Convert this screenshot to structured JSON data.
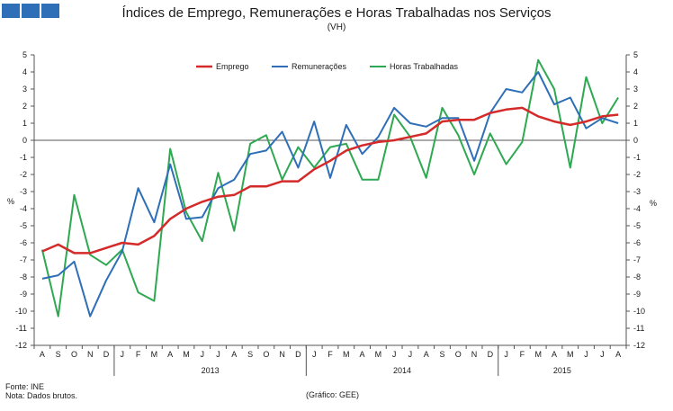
{
  "header": {
    "logo_blocks": 3,
    "logo_color": "#2e6fb7"
  },
  "footer": {
    "source": "Fonte: INE",
    "note": "Nota: Dados brutos.",
    "graph_ref": "(Gráfico: GEE)"
  },
  "chart_data": {
    "type": "line",
    "title": "Índices de Emprego,  Remunerações  e Horas Trabalhadas  nos Serviços",
    "subtitle": "(VH)",
    "ylabel_left": "%",
    "ylabel_right": "%",
    "ylim": [
      -12,
      5
    ],
    "yticks": [
      5,
      4,
      3,
      2,
      1,
      0,
      -1,
      -2,
      -3,
      -4,
      -5,
      -6,
      -7,
      -8,
      -9,
      -10,
      -11,
      -12
    ],
    "categories": [
      "A",
      "S",
      "O",
      "N",
      "D",
      "J",
      "F",
      "M",
      "A",
      "M",
      "J",
      "J",
      "A",
      "S",
      "O",
      "N",
      "D",
      "J",
      "F",
      "M",
      "A",
      "M",
      "J",
      "J",
      "A",
      "S",
      "O",
      "N",
      "D",
      "J",
      "F",
      "M",
      "A",
      "M",
      "J",
      "J",
      "A"
    ],
    "years": [
      {
        "label": "2013",
        "start": 5,
        "end": 16
      },
      {
        "label": "2014",
        "start": 17,
        "end": 28
      },
      {
        "label": "2015",
        "start": 29,
        "end": 36
      }
    ],
    "series": [
      {
        "name": "Emprego",
        "color": "#d42a2a",
        "values": [
          -6.5,
          -6.1,
          -6.6,
          -6.6,
          -6.3,
          -6.0,
          -6.1,
          -5.6,
          -4.6,
          -4.0,
          -3.6,
          -3.3,
          -3.2,
          -2.7,
          -2.7,
          -2.4,
          -2.4,
          -1.7,
          -1.2,
          -0.6,
          -0.3,
          -0.1,
          0.0,
          0.2,
          0.4,
          1.1,
          1.2,
          1.2,
          1.6,
          1.8,
          1.9,
          1.4,
          1.1,
          0.9,
          1.1,
          1.4,
          1.5
        ]
      },
      {
        "name": "Remunerações",
        "color": "#2e6fb7",
        "values": [
          -8.1,
          -7.9,
          -7.1,
          -10.3,
          -8.2,
          -6.5,
          -2.8,
          -4.8,
          -1.4,
          -4.6,
          -4.5,
          -2.8,
          -2.3,
          -0.8,
          -0.6,
          0.5,
          -1.6,
          1.1,
          -2.2,
          0.9,
          -0.8,
          0.2,
          1.9,
          1.0,
          0.8,
          1.3,
          1.3,
          -1.2,
          1.6,
          3.0,
          2.8,
          4.0,
          2.1,
          2.5,
          0.7,
          1.3,
          1.0
        ]
      },
      {
        "name": "Horas Trabalhadas",
        "color": "#2ea851",
        "values": [
          -6.4,
          -10.3,
          -3.2,
          -6.7,
          -7.3,
          -6.4,
          -8.9,
          -9.4,
          -0.5,
          -4.2,
          -5.9,
          -1.9,
          -5.3,
          -0.2,
          0.3,
          -2.3,
          -0.4,
          -1.6,
          -0.4,
          -0.2,
          -2.3,
          -2.3,
          1.5,
          0.2,
          -2.2,
          1.9,
          0.3,
          -2.0,
          0.4,
          -1.4,
          -0.1,
          4.7,
          3.0,
          -1.6,
          3.7,
          1.0,
          2.5
        ]
      }
    ],
    "legend_position": "top-center",
    "grid": false
  }
}
